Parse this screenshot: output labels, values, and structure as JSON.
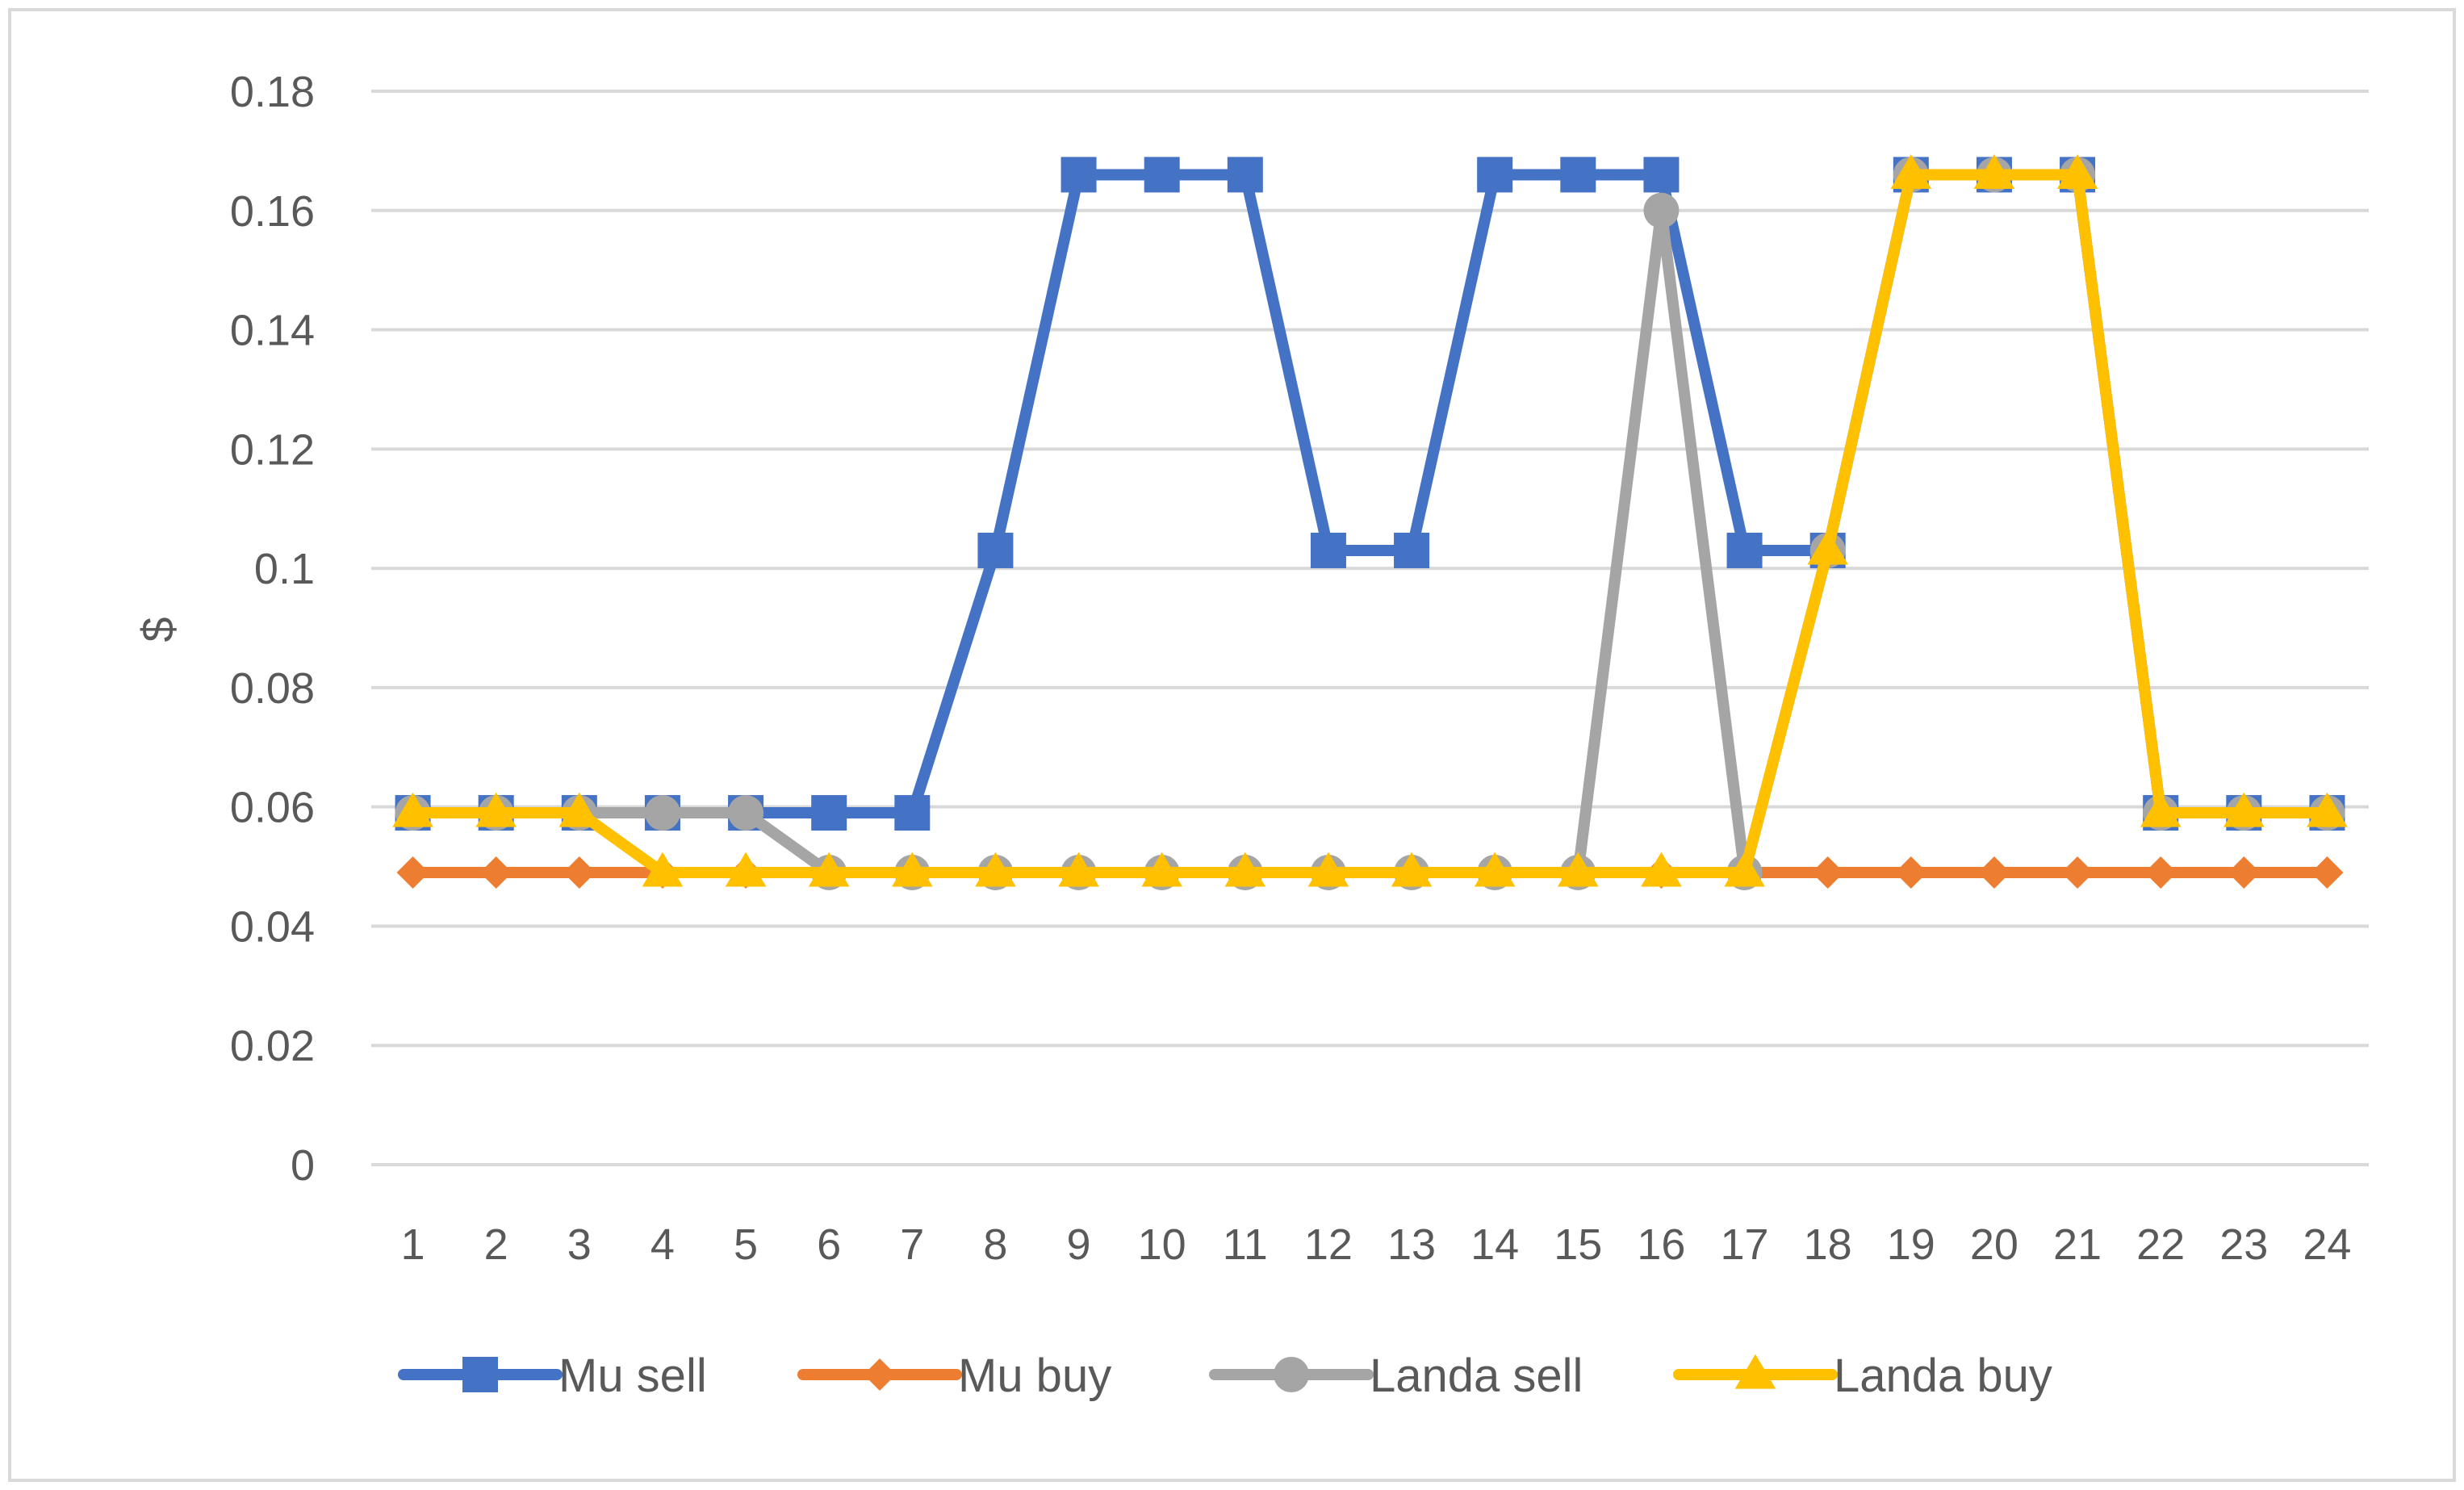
{
  "chart_data": {
    "type": "line",
    "title": "",
    "xlabel": "",
    "ylabel": "$",
    "categories": [
      "1",
      "2",
      "3",
      "4",
      "5",
      "6",
      "7",
      "8",
      "9",
      "10",
      "11",
      "12",
      "13",
      "14",
      "15",
      "16",
      "17",
      "18",
      "19",
      "20",
      "21",
      "22",
      "23",
      "24"
    ],
    "ylim": [
      0,
      0.18
    ],
    "yticks": [
      "0",
      "0.02",
      "0.04",
      "0.06",
      "0.08",
      "0.1",
      "0.12",
      "0.14",
      "0.16",
      "0.18"
    ],
    "grid": true,
    "legend_position": "bottom",
    "series": [
      {
        "name": "Mu sell",
        "color": "#4472c4",
        "marker": "square",
        "values": [
          0.059,
          0.059,
          0.059,
          0.059,
          0.059,
          0.059,
          0.059,
          0.103,
          0.166,
          0.166,
          0.166,
          0.103,
          0.103,
          0.166,
          0.166,
          0.166,
          0.103,
          0.103,
          0.166,
          0.166,
          0.166,
          0.059,
          0.059,
          0.059
        ]
      },
      {
        "name": "Mu buy",
        "color": "#ed7d31",
        "marker": "diamond",
        "values": [
          0.049,
          0.049,
          0.049,
          0.049,
          0.049,
          0.049,
          0.049,
          0.049,
          0.049,
          0.049,
          0.049,
          0.049,
          0.049,
          0.049,
          0.049,
          0.049,
          0.049,
          0.049,
          0.049,
          0.049,
          0.049,
          0.049,
          0.049,
          0.049
        ]
      },
      {
        "name": "Landa sell",
        "color": "#a5a5a5",
        "marker": "circle",
        "values": [
          0.059,
          0.059,
          0.059,
          0.059,
          0.059,
          0.049,
          0.049,
          0.049,
          0.049,
          0.049,
          0.049,
          0.049,
          0.049,
          0.049,
          0.049,
          0.16,
          0.049,
          0.103,
          0.166,
          0.166,
          0.166,
          0.059,
          0.059,
          0.059
        ]
      },
      {
        "name": "Landa buy",
        "color": "#ffc000",
        "marker": "triangle",
        "values": [
          0.059,
          0.059,
          0.059,
          0.049,
          0.049,
          0.049,
          0.049,
          0.049,
          0.049,
          0.049,
          0.049,
          0.049,
          0.049,
          0.049,
          0.049,
          0.049,
          0.049,
          0.103,
          0.166,
          0.166,
          0.166,
          0.059,
          0.059,
          0.059
        ]
      }
    ]
  }
}
